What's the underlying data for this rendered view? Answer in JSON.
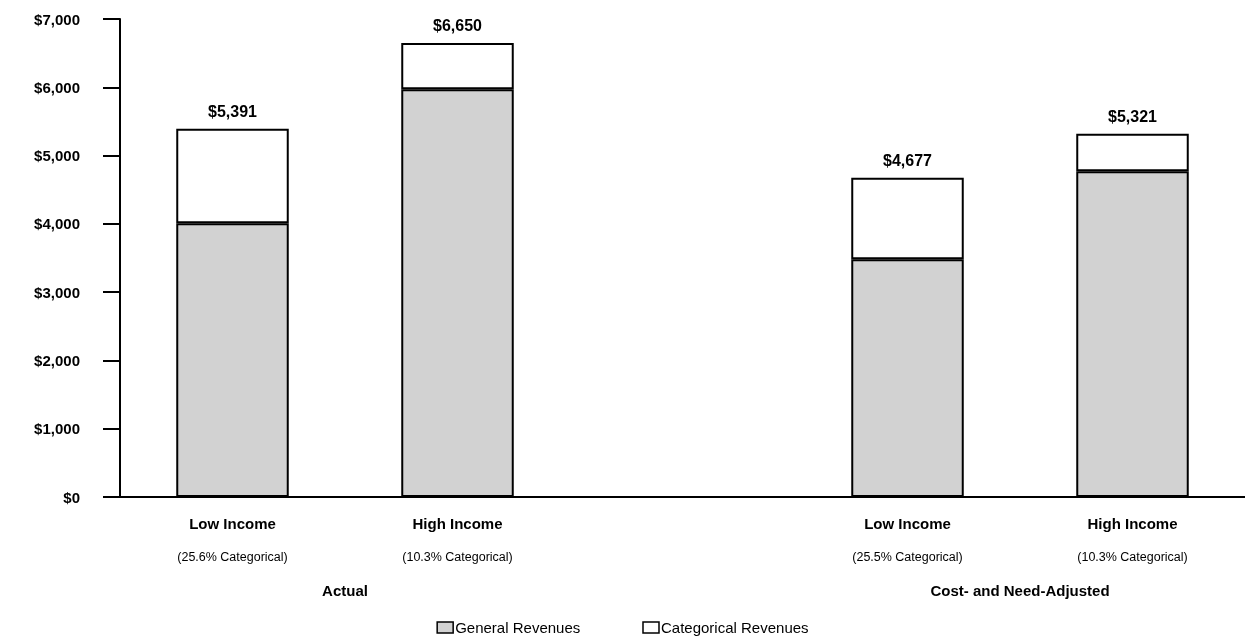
{
  "chart_data": {
    "type": "bar",
    "stacked": true,
    "categories": [
      "Low Income\n(25.6% Categorical)",
      "High Income\n(10.3% Categorical)",
      null,
      "Low Income\n(25.5% Categorical)",
      "High Income\n(10.3% Categorical)"
    ],
    "series": [
      {
        "name": "General Revenues",
        "color": "#d2d2d2",
        "values": [
          4010,
          5970,
          null,
          3480,
          4770
        ]
      },
      {
        "name": "Categorical Revenues",
        "color": "#ffffff",
        "values": [
          1381,
          680,
          null,
          1197,
          551
        ]
      }
    ],
    "totals": [
      "$5,391",
      "$6,650",
      null,
      "$4,677",
      "$5,321"
    ],
    "ylim": [
      0,
      7000
    ],
    "yticks": [
      {
        "value": 0,
        "label": "$0"
      },
      {
        "value": 1000,
        "label": "$1,000"
      },
      {
        "value": 2000,
        "label": "$2,000"
      },
      {
        "value": 3000,
        "label": "$3,000"
      },
      {
        "value": 4000,
        "label": "$4,000"
      },
      {
        "value": 5000,
        "label": "$5,000"
      },
      {
        "value": 6000,
        "label": "$6,000"
      },
      {
        "value": 7000,
        "label": "$7,000"
      }
    ],
    "grid": false,
    "legend": "bottom",
    "annotations": [
      "Actual",
      "Cost- and Need-Adjusted"
    ]
  }
}
